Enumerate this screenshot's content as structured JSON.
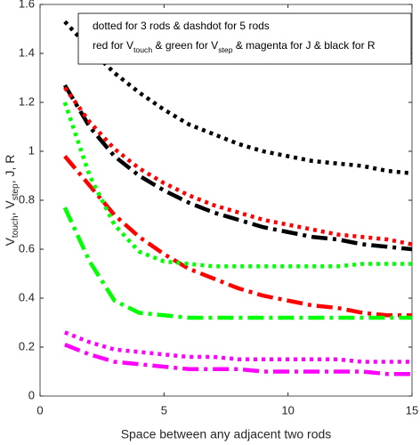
{
  "chart_data": {
    "type": "line",
    "xlabel": "Space between any adjacent two rods",
    "ylabel": [
      {
        "text": "V",
        "sub": false
      },
      {
        "text": "touch",
        "sub": true
      },
      {
        "text": ", V",
        "sub": false
      },
      {
        "text": "step",
        "sub": true
      },
      {
        "text": ", J, R",
        "sub": false
      }
    ],
    "legend_lines": [
      [
        {
          "text": "dotted for 3 rods & dashdot for 5 rods",
          "sub": false
        }
      ],
      [
        {
          "text": "red for V",
          "sub": false
        },
        {
          "text": "touch",
          "sub": true
        },
        {
          "text": " & green for V",
          "sub": false
        },
        {
          "text": "step",
          "sub": true
        },
        {
          "text": " & magenta for J & black for R",
          "sub": false
        }
      ]
    ],
    "legend_position": "upper right",
    "x": [
      1,
      2,
      3,
      4,
      5,
      6,
      7,
      8,
      9,
      10,
      11,
      12,
      13,
      14,
      15
    ],
    "series": [
      {
        "color": "#000000",
        "dash": "dotted",
        "values": [
          1.53,
          1.42,
          1.32,
          1.24,
          1.17,
          1.11,
          1.07,
          1.03,
          1.0,
          0.98,
          0.96,
          0.95,
          0.94,
          0.92,
          0.91
        ]
      },
      {
        "color": "#000000",
        "dash": "dashdot",
        "values": [
          1.27,
          1.1,
          0.98,
          0.9,
          0.84,
          0.79,
          0.75,
          0.72,
          0.69,
          0.67,
          0.65,
          0.64,
          0.62,
          0.61,
          0.6
        ]
      },
      {
        "color": "#ff0000",
        "dash": "dotted",
        "values": [
          1.26,
          1.12,
          1.01,
          0.93,
          0.87,
          0.82,
          0.78,
          0.75,
          0.72,
          0.7,
          0.68,
          0.66,
          0.65,
          0.64,
          0.62
        ]
      },
      {
        "color": "#ff0000",
        "dash": "dashdot",
        "values": [
          0.98,
          0.86,
          0.74,
          0.65,
          0.58,
          0.52,
          0.48,
          0.44,
          0.41,
          0.39,
          0.37,
          0.36,
          0.34,
          0.33,
          0.33
        ]
      },
      {
        "color": "#00ff00",
        "dash": "dotted",
        "values": [
          1.2,
          0.9,
          0.7,
          0.59,
          0.55,
          0.54,
          0.53,
          0.53,
          0.53,
          0.53,
          0.53,
          0.53,
          0.54,
          0.54,
          0.54
        ]
      },
      {
        "color": "#00ff00",
        "dash": "dashdot",
        "values": [
          0.77,
          0.55,
          0.39,
          0.34,
          0.33,
          0.32,
          0.32,
          0.32,
          0.32,
          0.32,
          0.32,
          0.32,
          0.32,
          0.32,
          0.32
        ]
      },
      {
        "color": "#ff00ff",
        "dash": "dotted",
        "values": [
          0.26,
          0.22,
          0.19,
          0.18,
          0.17,
          0.16,
          0.16,
          0.15,
          0.15,
          0.15,
          0.15,
          0.15,
          0.14,
          0.14,
          0.14
        ]
      },
      {
        "color": "#ff00ff",
        "dash": "dashdot",
        "values": [
          0.21,
          0.17,
          0.14,
          0.13,
          0.12,
          0.11,
          0.11,
          0.11,
          0.1,
          0.1,
          0.1,
          0.1,
          0.1,
          0.09,
          0.09
        ]
      }
    ],
    "xlim": [
      0,
      15
    ],
    "xticks": [
      0,
      5,
      10,
      15
    ],
    "ylim": [
      0,
      1.6
    ],
    "yticks": [
      0,
      0.2,
      0.4,
      0.6,
      0.8,
      1,
      1.2,
      1.4,
      1.6
    ],
    "grid": false
  }
}
